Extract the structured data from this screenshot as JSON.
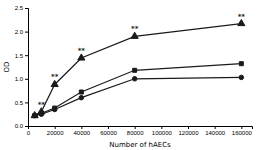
{
  "chart_data": {
    "type": "line",
    "x": [
      5000,
      10000,
      20000,
      40000,
      80000,
      160000
    ],
    "series": [
      {
        "color": "#1a1a1a",
        "marker": "circle",
        "values": [
          0.22,
          0.25,
          0.35,
          0.6,
          1.0,
          1.03
        ]
      },
      {
        "color": "#1a1a1a",
        "marker": "square",
        "values": [
          0.22,
          0.27,
          0.38,
          0.72,
          1.18,
          1.32
        ]
      },
      {
        "color": "#1a1a1a",
        "marker": "triangle",
        "values": [
          0.22,
          0.3,
          0.88,
          1.44,
          1.9,
          2.17
        ]
      }
    ],
    "annotations": [
      {
        "text": "**",
        "x": 10000,
        "y": 0.3
      },
      {
        "text": "**",
        "x": 20000,
        "y": 0.88
      },
      {
        "text": "**",
        "x": 40000,
        "y": 1.44
      },
      {
        "text": "**",
        "x": 80000,
        "y": 1.9
      },
      {
        "text": "**",
        "x": 160000,
        "y": 2.17
      }
    ],
    "xlabel": "Number of hAECs",
    "ylabel": "OD",
    "xlim": [
      0,
      168000
    ],
    "ylim": [
      0.0,
      2.5
    ],
    "xticks": [
      0,
      20000,
      40000,
      60000,
      80000,
      100000,
      120000,
      140000,
      160000
    ],
    "yticks": [
      {
        "value": 0.0,
        "label": "0.0"
      },
      0.5,
      {
        "value": 1.0,
        "label": "1.0"
      },
      1.5,
      {
        "value": 2.0,
        "label": "2.0"
      },
      2.5
    ]
  }
}
